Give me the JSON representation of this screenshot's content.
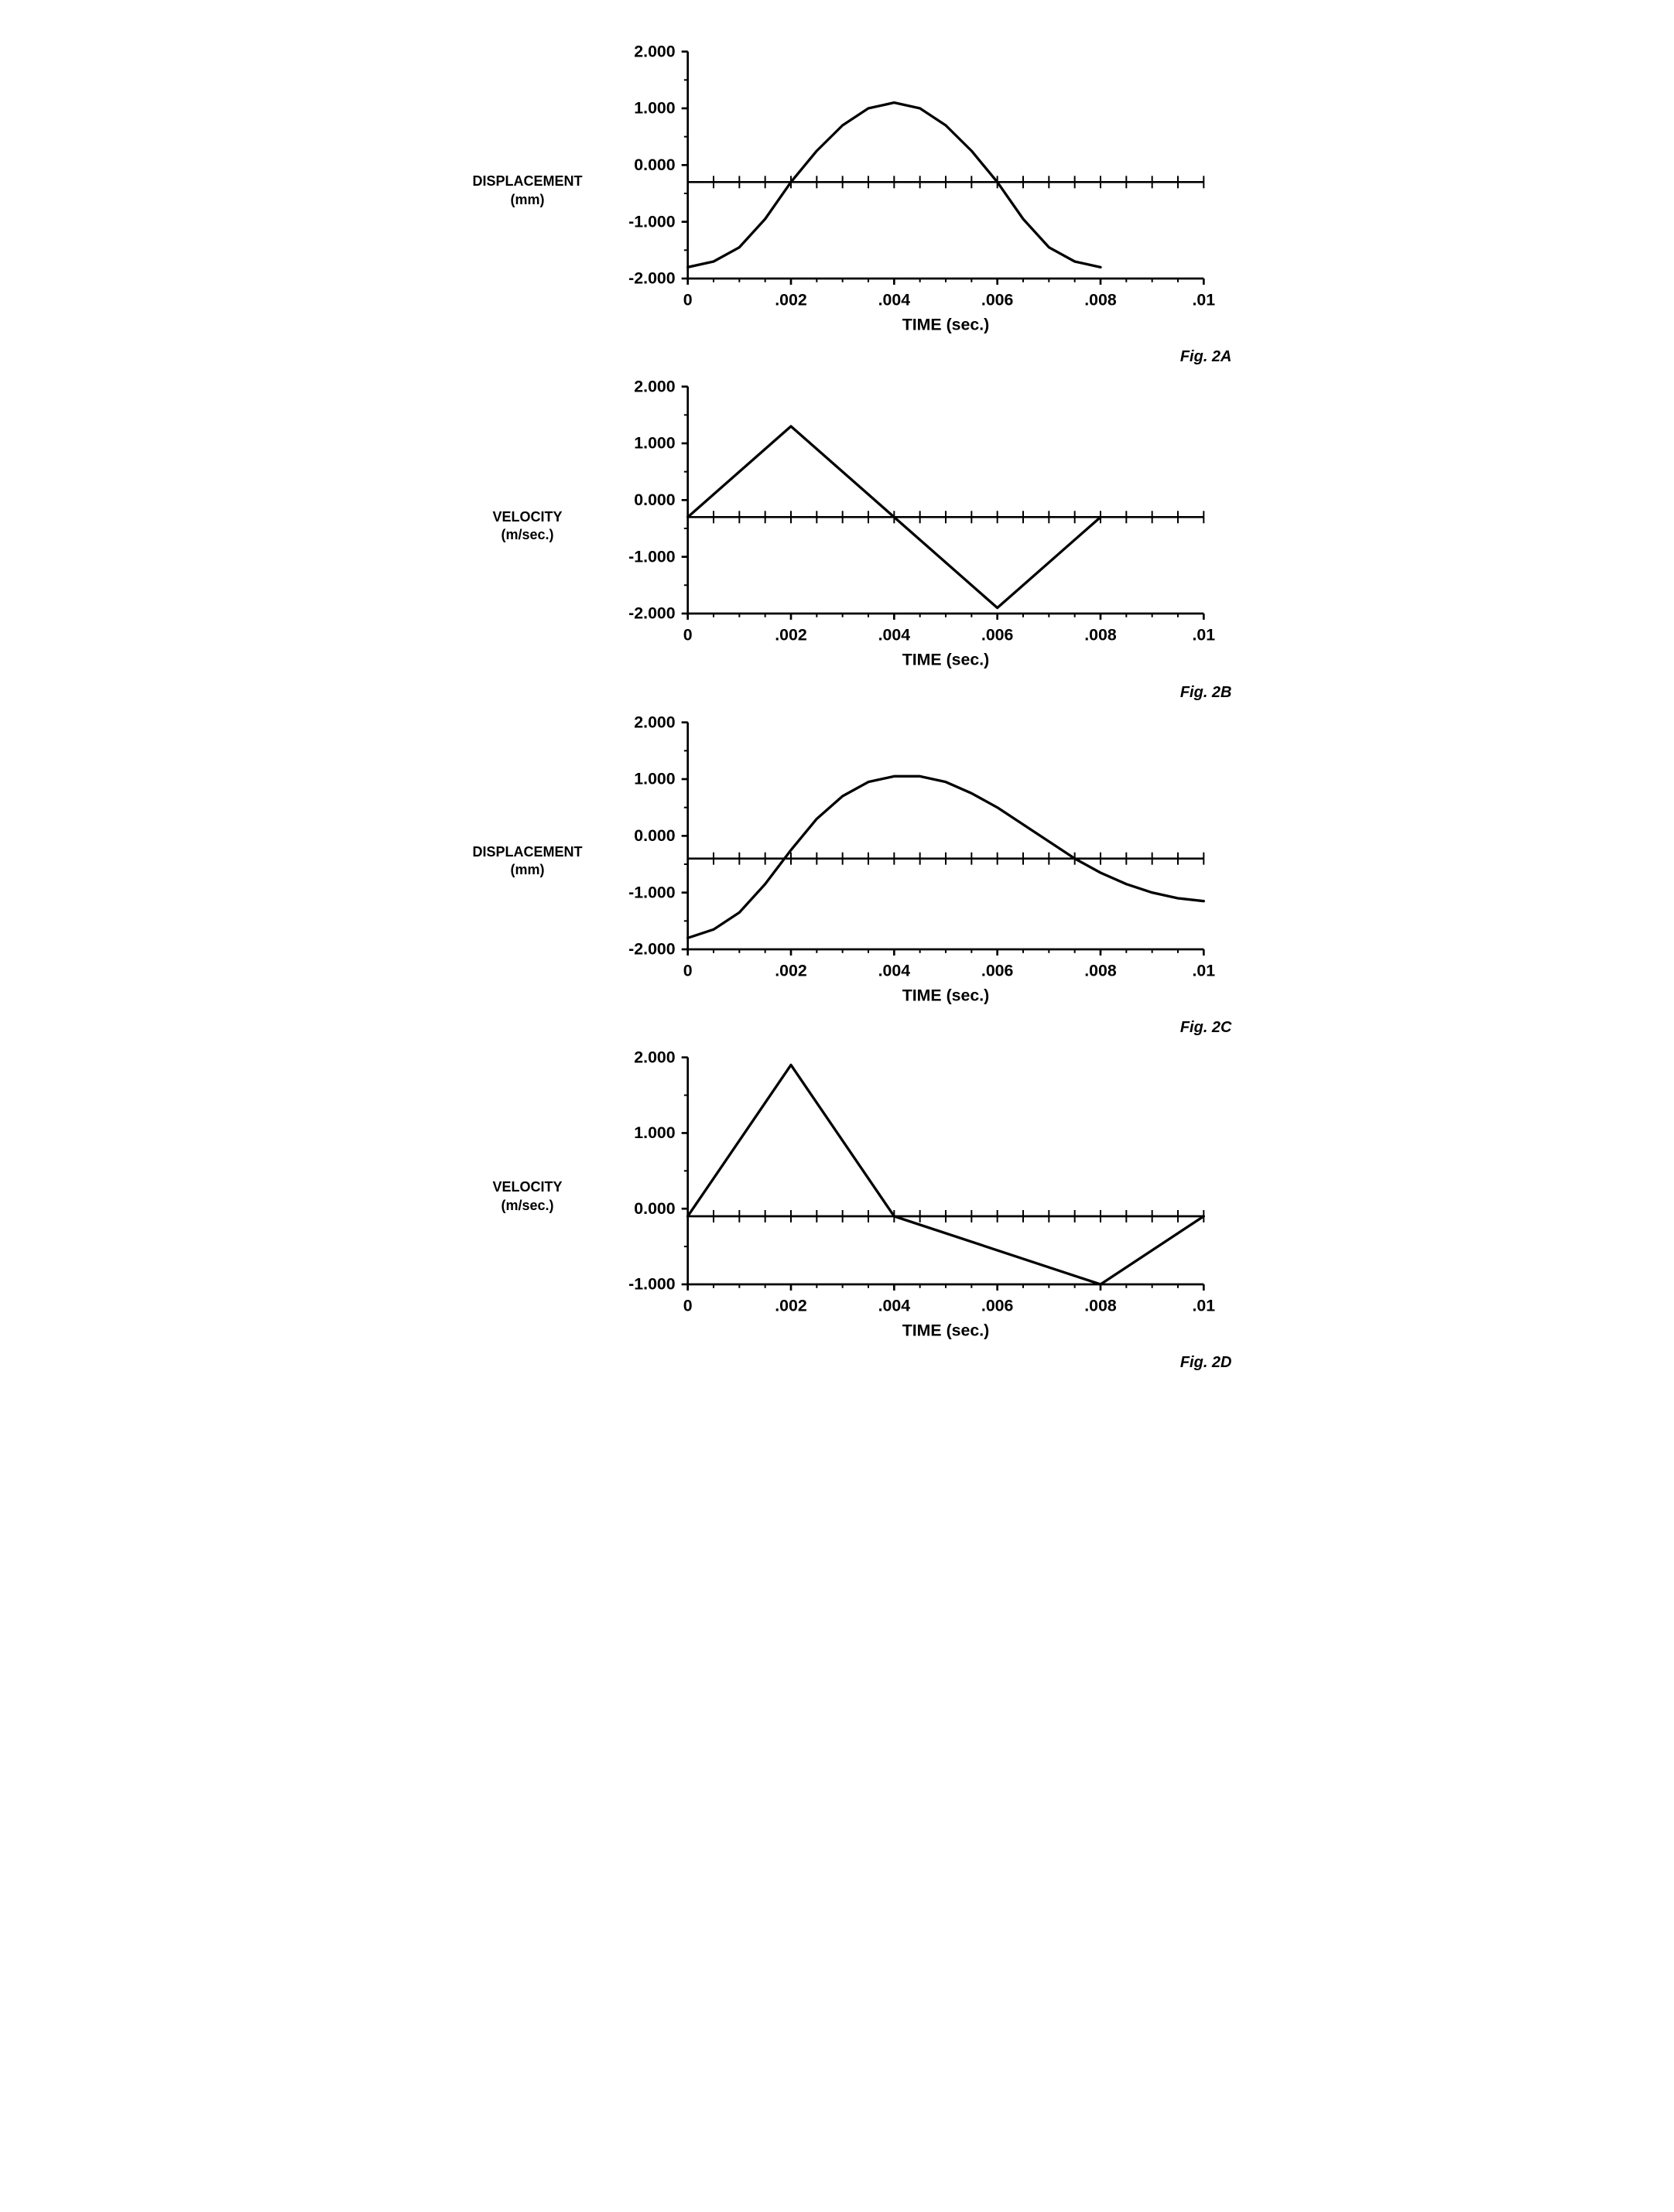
{
  "global": {
    "background_color": "#ffffff",
    "line_color": "#000000",
    "axis_color": "#000000",
    "text_color": "#000000",
    "line_width": 2.5,
    "axis_width": 2,
    "tick_length": 6,
    "font_family": "Helvetica, Arial, sans-serif",
    "ylabel_fontsize": 18,
    "ticklabel_fontsize": 16,
    "xlabel_fontsize": 16,
    "caption_fontsize": 20
  },
  "charts": [
    {
      "id": "chart-2A",
      "ylabel_line1": "DISPLACEMENT",
      "ylabel_line2": "(mm)",
      "xlabel": "TIME (sec.)",
      "caption": "Fig. 2A",
      "xlim": [
        0,
        0.01
      ],
      "ylim": [
        -2.0,
        2.0
      ],
      "xtick_major": [
        0,
        0.002,
        0.004,
        0.006,
        0.008,
        0.01
      ],
      "xtick_labels": [
        "0",
        ".002",
        ".004",
        ".006",
        ".008",
        ".01"
      ],
      "xtick_minor_step": 0.0005,
      "ytick_major": [
        -2.0,
        -1.0,
        0.0,
        1.0,
        2.0
      ],
      "ytick_labels": [
        "-2.000",
        "-1.000",
        "0.000",
        "1.000",
        "2.000"
      ],
      "ytick_minor_step": 0.5,
      "zero_line_y": -0.3,
      "type": "line",
      "data": [
        [
          0.0,
          -1.8
        ],
        [
          0.0005,
          -1.7
        ],
        [
          0.001,
          -1.45
        ],
        [
          0.0015,
          -0.95
        ],
        [
          0.002,
          -0.3
        ],
        [
          0.0025,
          0.25
        ],
        [
          0.003,
          0.7
        ],
        [
          0.0035,
          1.0
        ],
        [
          0.004,
          1.1
        ],
        [
          0.0045,
          1.0
        ],
        [
          0.005,
          0.7
        ],
        [
          0.0055,
          0.25
        ],
        [
          0.006,
          -0.3
        ],
        [
          0.0065,
          -0.95
        ],
        [
          0.007,
          -1.45
        ],
        [
          0.0075,
          -1.7
        ],
        [
          0.008,
          -1.8
        ]
      ]
    },
    {
      "id": "chart-2B",
      "ylabel_line1": "VELOCITY",
      "ylabel_line2": "(m/sec.)",
      "xlabel": "TIME (sec.)",
      "caption": "Fig. 2B",
      "xlim": [
        0,
        0.01
      ],
      "ylim": [
        -2.0,
        2.0
      ],
      "xtick_major": [
        0,
        0.002,
        0.004,
        0.006,
        0.008,
        0.01
      ],
      "xtick_labels": [
        "0",
        ".002",
        ".004",
        ".006",
        ".008",
        ".01"
      ],
      "xtick_minor_step": 0.0005,
      "ytick_major": [
        -2.0,
        -1.0,
        0.0,
        1.0,
        2.0
      ],
      "ytick_labels": [
        "-2.000",
        "-1.000",
        "0.000",
        "1.000",
        "2.000"
      ],
      "ytick_minor_step": 0.5,
      "zero_line_y": -0.3,
      "type": "line",
      "data": [
        [
          0.0,
          -0.3
        ],
        [
          0.002,
          1.3
        ],
        [
          0.004,
          -0.3
        ],
        [
          0.006,
          -1.9
        ],
        [
          0.008,
          -0.3
        ]
      ]
    },
    {
      "id": "chart-2C",
      "ylabel_line1": "DISPLACEMENT",
      "ylabel_line2": "(mm)",
      "xlabel": "TIME (sec.)",
      "caption": "Fig. 2C",
      "xlim": [
        0,
        0.01
      ],
      "ylim": [
        -2.0,
        2.0
      ],
      "xtick_major": [
        0,
        0.002,
        0.004,
        0.006,
        0.008,
        0.01
      ],
      "xtick_labels": [
        "0",
        ".002",
        ".004",
        ".006",
        ".008",
        ".01"
      ],
      "xtick_minor_step": 0.0005,
      "ytick_major": [
        -2.0,
        -1.0,
        0.0,
        1.0,
        2.0
      ],
      "ytick_labels": [
        "-2.000",
        "-1.000",
        "0.000",
        "1.000",
        "2.000"
      ],
      "ytick_minor_step": 0.5,
      "zero_line_y": -0.4,
      "type": "line",
      "data": [
        [
          0.0,
          -1.8
        ],
        [
          0.0005,
          -1.65
        ],
        [
          0.001,
          -1.35
        ],
        [
          0.0015,
          -0.85
        ],
        [
          0.002,
          -0.25
        ],
        [
          0.0025,
          0.3
        ],
        [
          0.003,
          0.7
        ],
        [
          0.0035,
          0.95
        ],
        [
          0.004,
          1.05
        ],
        [
          0.0045,
          1.05
        ],
        [
          0.005,
          0.95
        ],
        [
          0.0055,
          0.75
        ],
        [
          0.006,
          0.5
        ],
        [
          0.0065,
          0.2
        ],
        [
          0.007,
          -0.1
        ],
        [
          0.0075,
          -0.4
        ],
        [
          0.008,
          -0.65
        ],
        [
          0.0085,
          -0.85
        ],
        [
          0.009,
          -1.0
        ],
        [
          0.0095,
          -1.1
        ],
        [
          0.01,
          -1.15
        ]
      ]
    },
    {
      "id": "chart-2D",
      "ylabel_line1": "VELOCITY",
      "ylabel_line2": "(m/sec.)",
      "xlabel": "TIME (sec.)",
      "caption": "Fig. 2D",
      "xlim": [
        0,
        0.01
      ],
      "ylim": [
        -1.0,
        2.0
      ],
      "xtick_major": [
        0,
        0.002,
        0.004,
        0.006,
        0.008,
        0.01
      ],
      "xtick_labels": [
        "0",
        ".002",
        ".004",
        ".006",
        ".008",
        ".01"
      ],
      "xtick_minor_step": 0.0005,
      "ytick_major": [
        -1.0,
        0.0,
        1.0,
        2.0
      ],
      "ytick_labels": [
        "-1.000",
        "0.000",
        "1.000",
        "2.000"
      ],
      "ytick_minor_step": 0.5,
      "zero_line_y": -0.1,
      "type": "line",
      "data": [
        [
          0.0,
          -0.1
        ],
        [
          0.002,
          1.9
        ],
        [
          0.004,
          -0.1
        ],
        [
          0.008,
          -1.0
        ],
        [
          0.01,
          -0.1
        ]
      ]
    }
  ]
}
